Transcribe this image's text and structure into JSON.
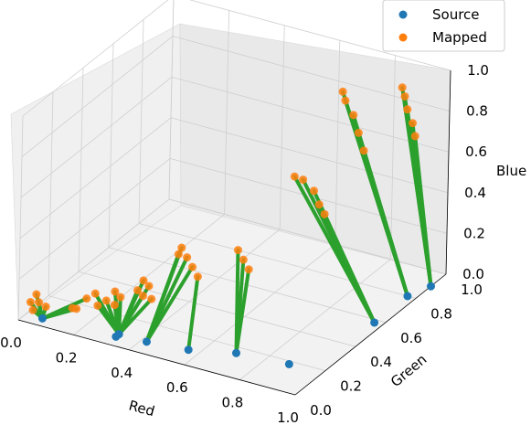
{
  "chart_data": {
    "type": "scatter",
    "title": "",
    "xlabel": "Red",
    "ylabel": "Green",
    "zlabel": "Blue",
    "xlim": [
      0,
      1
    ],
    "ylim": [
      0,
      1
    ],
    "zlim": [
      0,
      1
    ],
    "x_ticks": [
      "0.0",
      "0.2",
      "0.4",
      "0.6",
      "0.8",
      "1.0"
    ],
    "y_ticks": [
      "0.0",
      "0.2",
      "0.4",
      "0.6",
      "0.8",
      "1.0"
    ],
    "z_ticks": [
      "0.0",
      "0.2",
      "0.4",
      "0.6",
      "0.8",
      "1.0"
    ],
    "grid": true,
    "legend_position": "top-right",
    "series": [
      {
        "name": "Source",
        "color": "#1f77b4",
        "points": [
          {
            "x": 0.06,
            "y": 0.05,
            "z": 0.0
          },
          {
            "x": 0.32,
            "y": 0.06,
            "z": 0.0
          },
          {
            "x": 0.32,
            "y": 0.08,
            "z": 0.0
          },
          {
            "x": 0.42,
            "y": 0.08,
            "z": 0.0
          },
          {
            "x": 0.56,
            "y": 0.1,
            "z": 0.0
          },
          {
            "x": 0.7,
            "y": 0.16,
            "z": 0.0
          },
          {
            "x": 0.88,
            "y": 0.18,
            "z": 0.0
          },
          {
            "x": 0.97,
            "y": 0.58,
            "z": 0.0
          },
          {
            "x": 0.97,
            "y": 0.8,
            "z": 0.0
          },
          {
            "x": 1.0,
            "y": 0.9,
            "z": 0.0
          }
        ]
      },
      {
        "name": "Mapped",
        "color": "#ff7f0e",
        "points": [
          {
            "x": 0.0,
            "y": 0.08,
            "z": 0.04
          },
          {
            "x": 0.03,
            "y": 0.08,
            "z": 0.05
          },
          {
            "x": 0.01,
            "y": 0.1,
            "z": 0.07
          },
          {
            "x": 0.05,
            "y": 0.09,
            "z": 0.03
          },
          {
            "x": 0.02,
            "y": 0.06,
            "z": 0.02
          },
          {
            "x": 0.14,
            "y": 0.1,
            "z": 0.05
          },
          {
            "x": 0.18,
            "y": 0.12,
            "z": 0.1
          },
          {
            "x": 0.2,
            "y": 0.14,
            "z": 0.12
          },
          {
            "x": 0.22,
            "y": 0.12,
            "z": 0.08
          },
          {
            "x": 0.16,
            "y": 0.09,
            "z": 0.06
          },
          {
            "x": 0.24,
            "y": 0.14,
            "z": 0.1
          },
          {
            "x": 0.26,
            "y": 0.16,
            "z": 0.14
          },
          {
            "x": 0.28,
            "y": 0.16,
            "z": 0.12
          },
          {
            "x": 0.27,
            "y": 0.14,
            "z": 0.09
          },
          {
            "x": 0.33,
            "y": 0.18,
            "z": 0.16
          },
          {
            "x": 0.34,
            "y": 0.2,
            "z": 0.2
          },
          {
            "x": 0.36,
            "y": 0.2,
            "z": 0.18
          },
          {
            "x": 0.35,
            "y": 0.18,
            "z": 0.14
          },
          {
            "x": 0.37,
            "y": 0.2,
            "z": 0.12
          },
          {
            "x": 0.4,
            "y": 0.32,
            "z": 0.28
          },
          {
            "x": 0.4,
            "y": 0.34,
            "z": 0.3
          },
          {
            "x": 0.42,
            "y": 0.34,
            "z": 0.26
          },
          {
            "x": 0.44,
            "y": 0.34,
            "z": 0.22
          },
          {
            "x": 0.46,
            "y": 0.34,
            "z": 0.18
          },
          {
            "x": 0.56,
            "y": 0.42,
            "z": 0.3
          },
          {
            "x": 0.58,
            "y": 0.42,
            "z": 0.26
          },
          {
            "x": 0.6,
            "y": 0.42,
            "z": 0.22
          },
          {
            "x": 0.64,
            "y": 0.64,
            "z": 0.56
          },
          {
            "x": 0.66,
            "y": 0.66,
            "z": 0.54
          },
          {
            "x": 0.7,
            "y": 0.66,
            "z": 0.5
          },
          {
            "x": 0.72,
            "y": 0.66,
            "z": 0.44
          },
          {
            "x": 0.74,
            "y": 0.66,
            "z": 0.4
          },
          {
            "x": 0.7,
            "y": 0.84,
            "z": 0.88
          },
          {
            "x": 0.71,
            "y": 0.84,
            "z": 0.84
          },
          {
            "x": 0.74,
            "y": 0.84,
            "z": 0.78
          },
          {
            "x": 0.76,
            "y": 0.84,
            "z": 0.7
          },
          {
            "x": 0.78,
            "y": 0.84,
            "z": 0.62
          },
          {
            "x": 0.86,
            "y": 0.94,
            "z": 0.9
          },
          {
            "x": 0.87,
            "y": 0.94,
            "z": 0.86
          },
          {
            "x": 0.88,
            "y": 0.94,
            "z": 0.8
          },
          {
            "x": 0.9,
            "y": 0.94,
            "z": 0.74
          },
          {
            "x": 0.91,
            "y": 0.94,
            "z": 0.68
          }
        ]
      }
    ],
    "connectors": {
      "color": "#2ca02c",
      "from": "Source",
      "to": "Mapped"
    }
  }
}
